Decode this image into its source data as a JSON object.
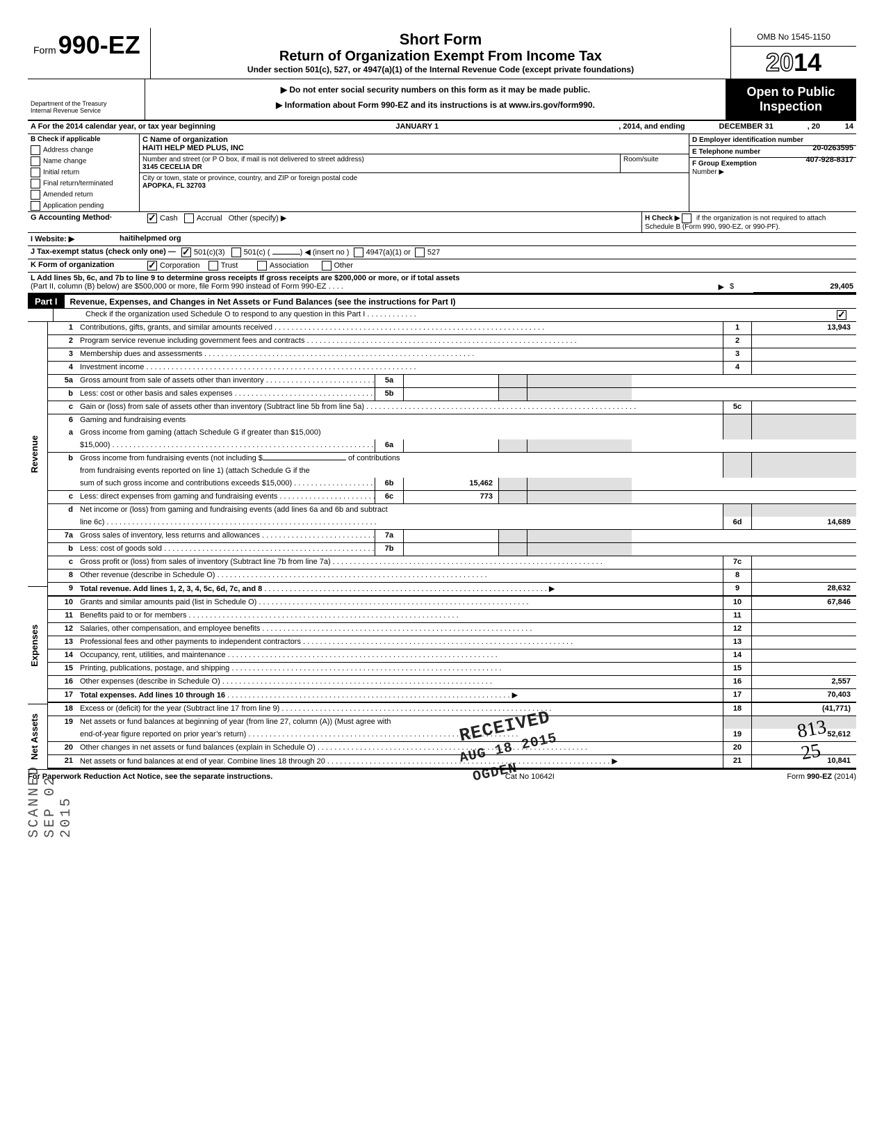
{
  "form": {
    "prefix": "Form",
    "number": "990-EZ",
    "title_short": "Short Form",
    "title_main": "Return of Organization Exempt From Income Tax",
    "title_sub": "Under section 501(c), 527, or 4947(a)(1) of the Internal Revenue Code (except private foundations)",
    "warn1": "▶ Do not enter social security numbers on this form as it may be made public.",
    "warn2": "▶ Information about Form 990-EZ and its instructions is at www.irs.gov/form990.",
    "dept": "Department of the Treasury\nInternal Revenue Service",
    "omb": "OMB No 1545-1150",
    "year_outline": "20",
    "year_solid": "14",
    "open": "Open to Public Inspection"
  },
  "period": {
    "label": "A For the 2014 calendar year, or tax year beginning",
    "begin": "JANUARY 1",
    "mid": ", 2014, and ending",
    "end": "DECEMBER 31",
    "yr_pfx": ", 20",
    "yr": "14"
  },
  "boxB": {
    "title": "B Check if applicable",
    "items": [
      "Address change",
      "Name change",
      "Initial return",
      "Final return/terminated",
      "Amended return",
      "Application pending"
    ]
  },
  "boxC": {
    "name_lbl": "C Name of organization",
    "name": "HAITI HELP MED PLUS, INC",
    "street_lbl": "Number and street (or P O  box, if mail is not delivered to street address)",
    "street": "3145 CECELIA DR",
    "room_lbl": "Room/suite",
    "city_lbl": "City or town, state or province, country, and ZIP or foreign postal code",
    "city": "APOPKA, FL 32703"
  },
  "boxD": {
    "lbl": "D Employer identification number",
    "val": "20-0263595"
  },
  "boxE": {
    "lbl": "E Telephone number",
    "val": "407-928-8317"
  },
  "boxF": {
    "lbl": "F Group Exemption",
    "lbl2": "Number ▶"
  },
  "rowG": {
    "lbl": "G Accounting Method·",
    "cash": "Cash",
    "accr": "Accrual",
    "other": "Other (specify) ▶"
  },
  "rowH": {
    "lbl": "H Check ▶",
    "txt": "if the organization is not required to attach Schedule B (Form 990, 990-EZ, or 990-PF)."
  },
  "rowI": {
    "lbl": "I  Website: ▶",
    "val": "haitihelpmed org"
  },
  "rowJ": {
    "lbl": "J Tax-exempt status (check only one) —",
    "a": "501(c)(3)",
    "b": "501(c) (",
    "b2": ") ◀ (insert no )",
    "c": "4947(a)(1) or",
    "d": "527"
  },
  "rowK": {
    "lbl": "K Form of organization",
    "a": "Corporation",
    "b": "Trust",
    "c": "Association",
    "d": "Other"
  },
  "rowL": {
    "txt1": "L Add lines 5b, 6c, and 7b to line 9 to determine gross receipts If gross receipts are $200,000 or more, or if total assets",
    "txt2": "(Part II, column (B) below) are $500,000 or more, file Form 990 instead of Form 990-EZ . . . .",
    "arrow": "▶",
    "sym": "$",
    "val": "29,405"
  },
  "part1": {
    "lbl": "Part I",
    "title": "Revenue, Expenses, and Changes in Net Assets or Fund Balances (see the instructions for Part I)",
    "check_line": "Check if the organization used Schedule O to respond to any question in this Part I . . . . . . . . . . . ."
  },
  "section_labels": {
    "revenue": "Revenue",
    "expenses": "Expenses",
    "netassets": "Net Assets"
  },
  "lines": {
    "l1": {
      "n": "1",
      "d": "Contributions, gifts, grants, and similar amounts received",
      "box": "1",
      "v": "13,943"
    },
    "l2": {
      "n": "2",
      "d": "Program service revenue including government fees and contracts",
      "box": "2",
      "v": ""
    },
    "l3": {
      "n": "3",
      "d": "Membership dues and assessments",
      "box": "3",
      "v": ""
    },
    "l4": {
      "n": "4",
      "d": "Investment income",
      "box": "4",
      "v": ""
    },
    "l5a": {
      "n": "5a",
      "d": "Gross amount from sale of assets other than inventory",
      "ibox": "5a",
      "iv": ""
    },
    "l5b": {
      "n": "b",
      "d": "Less: cost or other basis and sales expenses",
      "ibox": "5b",
      "iv": ""
    },
    "l5c": {
      "n": "c",
      "d": "Gain or (loss) from sale of assets other than inventory (Subtract line 5b from line 5a)",
      "box": "5c",
      "v": ""
    },
    "l6": {
      "n": "6",
      "d": "Gaming and fundraising events"
    },
    "l6a": {
      "n": "a",
      "d": "Gross income from gaming (attach Schedule G if greater than $15,000)",
      "ibox": "6a",
      "iv": ""
    },
    "l6b": {
      "n": "b",
      "d1": "Gross income from fundraising events (not including  $",
      "d2": "of contributions",
      "d3": "from fundraising events reported on line 1) (attach Schedule G if the sum of such gross income and contributions exceeds $15,000)",
      "ibox": "6b",
      "iv": "15,462"
    },
    "l6c": {
      "n": "c",
      "d": "Less: direct expenses from gaming and fundraising events",
      "ibox": "6c",
      "iv": "773"
    },
    "l6d": {
      "n": "d",
      "d": "Net income or (loss) from gaming and fundraising events (add lines 6a and 6b and subtract line 6c)",
      "box": "6d",
      "v": "14,689"
    },
    "l7a": {
      "n": "7a",
      "d": "Gross sales of inventory, less returns and allowances",
      "ibox": "7a",
      "iv": ""
    },
    "l7b": {
      "n": "b",
      "d": "Less: cost of goods sold",
      "ibox": "7b",
      "iv": ""
    },
    "l7c": {
      "n": "c",
      "d": "Gross profit or (loss) from sales of inventory (Subtract line 7b from line 7a)",
      "box": "7c",
      "v": ""
    },
    "l8": {
      "n": "8",
      "d": "Other revenue (describe in Schedule O)",
      "box": "8",
      "v": ""
    },
    "l9": {
      "n": "9",
      "d": "Total revenue. Add lines 1, 2, 3, 4, 5c, 6d, 7c, and 8",
      "box": "9",
      "v": "28,632",
      "bold": true,
      "arrow": true
    },
    "l10": {
      "n": "10",
      "d": "Grants and similar amounts paid (list in Schedule O)",
      "box": "10",
      "v": "67,846"
    },
    "l11": {
      "n": "11",
      "d": "Benefits paid to or for members",
      "box": "11",
      "v": ""
    },
    "l12": {
      "n": "12",
      "d": "Salaries, other compensation, and employee benefits",
      "box": "12",
      "v": ""
    },
    "l13": {
      "n": "13",
      "d": "Professional fees and other payments to independent contractors",
      "box": "13",
      "v": ""
    },
    "l14": {
      "n": "14",
      "d": "Occupancy, rent, utilities, and maintenance",
      "box": "14",
      "v": ""
    },
    "l15": {
      "n": "15",
      "d": "Printing, publications, postage, and shipping",
      "box": "15",
      "v": ""
    },
    "l16": {
      "n": "16",
      "d": "Other expenses (describe in Schedule O)",
      "box": "16",
      "v": "2,557"
    },
    "l17": {
      "n": "17",
      "d": "Total expenses. Add lines 10 through 16",
      "box": "17",
      "v": "70,403",
      "bold": true,
      "arrow": true
    },
    "l18": {
      "n": "18",
      "d": "Excess or (deficit) for the year (Subtract line 17 from line 9)",
      "box": "18",
      "v": "(41,771)"
    },
    "l19": {
      "n": "19",
      "d": "Net assets or fund balances at beginning of year (from line 27, column (A)) (Must agree with end-of-year figure reported on prior year's return)",
      "box": "19",
      "v": "52,612"
    },
    "l20": {
      "n": "20",
      "d": "Other changes in net assets or fund balances (explain in Schedule O)",
      "box": "20",
      "v": ""
    },
    "l21": {
      "n": "21",
      "d": "Net assets or fund balances at end of year. Combine lines 18 through 20",
      "box": "21",
      "v": "10,841",
      "arrow": true
    }
  },
  "footer": {
    "left": "For Paperwork Reduction Act Notice, see the separate instructions.",
    "mid": "Cat No 10642I",
    "right": "Form 990-EZ (2014)"
  },
  "stamps": {
    "received": "RECEIVED",
    "date": "AUG 18 2015",
    "ogden": "OGDEN",
    "scanned": "SCANNED SEP 02 2015",
    "hand": "813\n25"
  }
}
